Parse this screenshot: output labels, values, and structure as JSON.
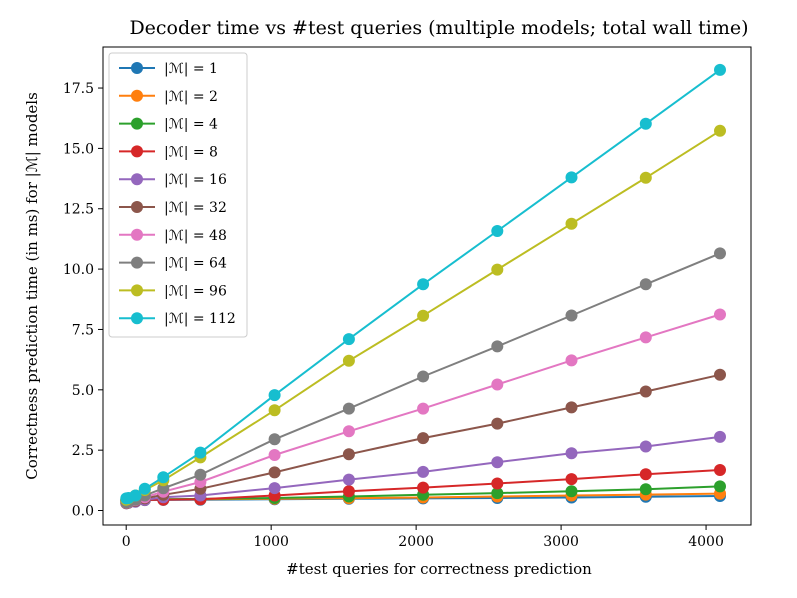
{
  "chart_data": {
    "type": "line",
    "title": "Decoder time vs #test queries (multiple models; total wall time)",
    "xlabel": "#test queries for correctness prediction",
    "ylabel": "Correctness prediction time (in ms) for |ℳ| models",
    "xlim": [
      -160,
      4310
    ],
    "ylim": [
      -0.6,
      19.2
    ],
    "x_ticks": [
      0,
      1000,
      2000,
      3000,
      4000
    ],
    "x_tick_labels": [
      "0",
      "1000",
      "2000",
      "3000",
      "4000"
    ],
    "y_ticks": [
      0.0,
      2.5,
      5.0,
      7.5,
      10.0,
      12.5,
      15.0,
      17.5
    ],
    "y_tick_labels": [
      "0.0",
      "2.5",
      "5.0",
      "7.5",
      "10.0",
      "12.5",
      "15.0",
      "17.5"
    ],
    "legend_position": "upper-left",
    "x": [
      1,
      16,
      64,
      128,
      256,
      512,
      1024,
      1536,
      2048,
      2560,
      3072,
      3584,
      4096
    ],
    "series": [
      {
        "name": "|ℳ| = 1",
        "color": "#1f77b4",
        "values": [
          0.4,
          0.41,
          0.42,
          0.43,
          0.44,
          0.45,
          0.47,
          0.49,
          0.5,
          0.52,
          0.54,
          0.57,
          0.6
        ]
      },
      {
        "name": "|ℳ| = 2",
        "color": "#ff7f0e",
        "values": [
          0.42,
          0.43,
          0.44,
          0.45,
          0.46,
          0.47,
          0.49,
          0.51,
          0.54,
          0.58,
          0.62,
          0.66,
          0.7
        ]
      },
      {
        "name": "|ℳ| = 4",
        "color": "#2ca02c",
        "values": [
          0.43,
          0.44,
          0.45,
          0.46,
          0.47,
          0.48,
          0.52,
          0.58,
          0.65,
          0.72,
          0.8,
          0.88,
          1.0
        ]
      },
      {
        "name": "|ℳ| = 8",
        "color": "#d62728",
        "values": [
          0.41,
          0.42,
          0.43,
          0.44,
          0.45,
          0.47,
          0.62,
          0.8,
          0.95,
          1.12,
          1.3,
          1.5,
          1.68
        ]
      },
      {
        "name": "|ℳ| = 16",
        "color": "#9467bd",
        "values": [
          0.3,
          0.32,
          0.36,
          0.44,
          0.55,
          0.62,
          0.93,
          1.28,
          1.6,
          2.0,
          2.37,
          2.65,
          3.05
        ]
      },
      {
        "name": "|ℳ| = 32",
        "color": "#8c564b",
        "values": [
          0.3,
          0.33,
          0.4,
          0.5,
          0.65,
          0.9,
          1.58,
          2.33,
          3.0,
          3.6,
          4.27,
          4.93,
          5.62
        ]
      },
      {
        "name": "|ℳ| = 48",
        "color": "#e377c2",
        "values": [
          0.32,
          0.35,
          0.43,
          0.55,
          0.78,
          1.18,
          2.3,
          3.28,
          4.22,
          5.22,
          6.22,
          7.17,
          8.12
        ]
      },
      {
        "name": "|ℳ| = 64",
        "color": "#7f7f7f",
        "values": [
          0.33,
          0.36,
          0.45,
          0.62,
          0.92,
          1.48,
          2.95,
          4.22,
          5.55,
          6.8,
          8.08,
          9.37,
          10.65
        ]
      },
      {
        "name": "|ℳ| = 96",
        "color": "#bcbd22",
        "values": [
          0.45,
          0.5,
          0.62,
          0.85,
          1.25,
          2.2,
          4.15,
          6.2,
          8.07,
          9.98,
          11.88,
          13.78,
          15.73
        ]
      },
      {
        "name": "|ℳ| = 112",
        "color": "#17becf",
        "values": [
          0.5,
          0.52,
          0.62,
          0.9,
          1.38,
          2.4,
          4.78,
          7.1,
          9.37,
          11.58,
          13.8,
          16.02,
          18.25
        ]
      }
    ]
  }
}
